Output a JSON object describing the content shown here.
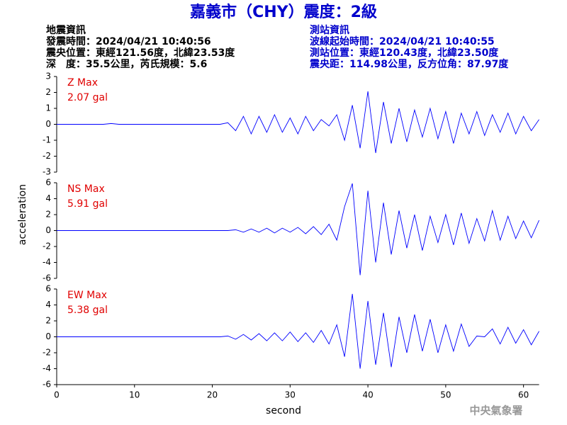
{
  "header": {
    "title": "嘉義市（CHY）震度：2級",
    "left": [
      "地震資訊",
      "發震時間：2024/04/21 10:40:56",
      "震央位置：東經121.56度，北緯23.53度",
      "深　度：35.5公里，芮氏規模：5.6"
    ],
    "right": [
      "測站資訊",
      "波線起始時間：2024/04/21 10:40:55",
      "測站位置：東經120.43度，北緯23.50度",
      "震央距：114.98公里，反方位角：87.97度"
    ]
  },
  "footer": "中央氣象署",
  "chart_data": [
    {
      "type": "line",
      "title": "Z Max",
      "subtitle": "2.07 gal",
      "color": "#0000ff",
      "xlim": [
        0,
        62
      ],
      "ylim": [
        -3,
        3
      ],
      "yticks": [
        -3,
        -2,
        -1,
        0,
        1,
        2,
        3
      ],
      "x": [
        0,
        1,
        2,
        3,
        4,
        5,
        6,
        7,
        8,
        9,
        10,
        11,
        12,
        13,
        14,
        15,
        16,
        17,
        18,
        19,
        20,
        21,
        22,
        23,
        24,
        25,
        26,
        27,
        28,
        29,
        30,
        31,
        32,
        33,
        34,
        35,
        36,
        37,
        38,
        39,
        40,
        41,
        42,
        43,
        44,
        45,
        46,
        47,
        48,
        49,
        50,
        51,
        52,
        53,
        54,
        55,
        56,
        57,
        58,
        59,
        60,
        61,
        62
      ],
      "values": [
        0,
        0,
        0,
        0,
        0,
        0,
        0,
        0.05,
        0,
        0,
        0,
        0,
        0,
        0,
        0,
        0,
        0,
        0,
        0,
        0,
        0,
        0,
        0.1,
        -0.4,
        0.5,
        -0.6,
        0.5,
        -0.5,
        0.6,
        -0.5,
        0.4,
        -0.6,
        0.5,
        -0.4,
        0.3,
        -0.1,
        0.6,
        -1.0,
        1.2,
        -1.5,
        2.07,
        -1.8,
        1.4,
        -1.2,
        1.0,
        -1.1,
        0.9,
        -0.8,
        1.0,
        -0.9,
        0.8,
        -1.2,
        0.7,
        -0.6,
        0.8,
        -0.7,
        0.6,
        -0.5,
        0.7,
        -0.6,
        0.5,
        -0.4,
        0.3
      ]
    },
    {
      "type": "line",
      "title": "NS Max",
      "subtitle": "5.91 gal",
      "color": "#0000ff",
      "ylabel": "acceleration",
      "xlim": [
        0,
        62
      ],
      "ylim": [
        -6,
        6
      ],
      "yticks": [
        -6,
        -4,
        -2,
        0,
        2,
        4,
        6
      ],
      "x": [
        0,
        1,
        2,
        3,
        4,
        5,
        6,
        7,
        8,
        9,
        10,
        11,
        12,
        13,
        14,
        15,
        16,
        17,
        18,
        19,
        20,
        21,
        22,
        23,
        24,
        25,
        26,
        27,
        28,
        29,
        30,
        31,
        32,
        33,
        34,
        35,
        36,
        37,
        38,
        39,
        40,
        41,
        42,
        43,
        44,
        45,
        46,
        47,
        48,
        49,
        50,
        51,
        52,
        53,
        54,
        55,
        56,
        57,
        58,
        59,
        60,
        61,
        62
      ],
      "values": [
        0,
        0,
        0,
        0,
        0,
        0,
        0,
        0,
        0,
        0,
        0,
        0,
        0,
        0,
        0,
        0,
        0,
        0,
        0,
        0,
        0,
        0,
        0,
        0.1,
        -0.2,
        0.2,
        -0.2,
        0.3,
        -0.3,
        0.3,
        -0.2,
        0.4,
        -0.4,
        0.5,
        -0.5,
        0.8,
        -1.2,
        3.0,
        5.91,
        -5.6,
        5.0,
        -4.0,
        3.5,
        -3.0,
        2.5,
        -2.2,
        2.0,
        -2.5,
        1.8,
        -1.5,
        2.0,
        -1.8,
        2.2,
        -1.6,
        1.5,
        -1.3,
        2.5,
        -1.2,
        1.8,
        -1.0,
        1.2,
        -0.9,
        1.3
      ]
    },
    {
      "type": "line",
      "title": "EW Max",
      "subtitle": "5.38 gal",
      "color": "#0000ff",
      "xlabel": "second",
      "xlim": [
        0,
        62
      ],
      "ylim": [
        -6,
        6
      ],
      "yticks": [
        -6,
        -4,
        -2,
        0,
        2,
        4,
        6
      ],
      "xticks": [
        0,
        10,
        20,
        30,
        40,
        50,
        60
      ],
      "x": [
        0,
        1,
        2,
        3,
        4,
        5,
        6,
        7,
        8,
        9,
        10,
        11,
        12,
        13,
        14,
        15,
        16,
        17,
        18,
        19,
        20,
        21,
        22,
        23,
        24,
        25,
        26,
        27,
        28,
        29,
        30,
        31,
        32,
        33,
        34,
        35,
        36,
        37,
        38,
        39,
        40,
        41,
        42,
        43,
        44,
        45,
        46,
        47,
        48,
        49,
        50,
        51,
        52,
        53,
        54,
        55,
        56,
        57,
        58,
        59,
        60,
        61,
        62
      ],
      "values": [
        0,
        0,
        0,
        0,
        0,
        0,
        0,
        0,
        0,
        0,
        0,
        0,
        0,
        0,
        0,
        0,
        0,
        0,
        0,
        0,
        0,
        0,
        0.1,
        -0.3,
        0.3,
        -0.4,
        0.4,
        -0.5,
        0.5,
        -0.5,
        0.6,
        -0.6,
        0.5,
        -0.7,
        0.8,
        -0.9,
        1.5,
        -2.5,
        5.38,
        -4.0,
        4.5,
        -3.5,
        3.0,
        -3.8,
        2.5,
        -2.0,
        2.8,
        -1.8,
        2.2,
        -2.0,
        1.5,
        -1.8,
        1.6,
        -1.2,
        0.1,
        0,
        1.0,
        -0.9,
        1.2,
        -0.8,
        0.9,
        -1.0,
        0.7
      ]
    }
  ]
}
